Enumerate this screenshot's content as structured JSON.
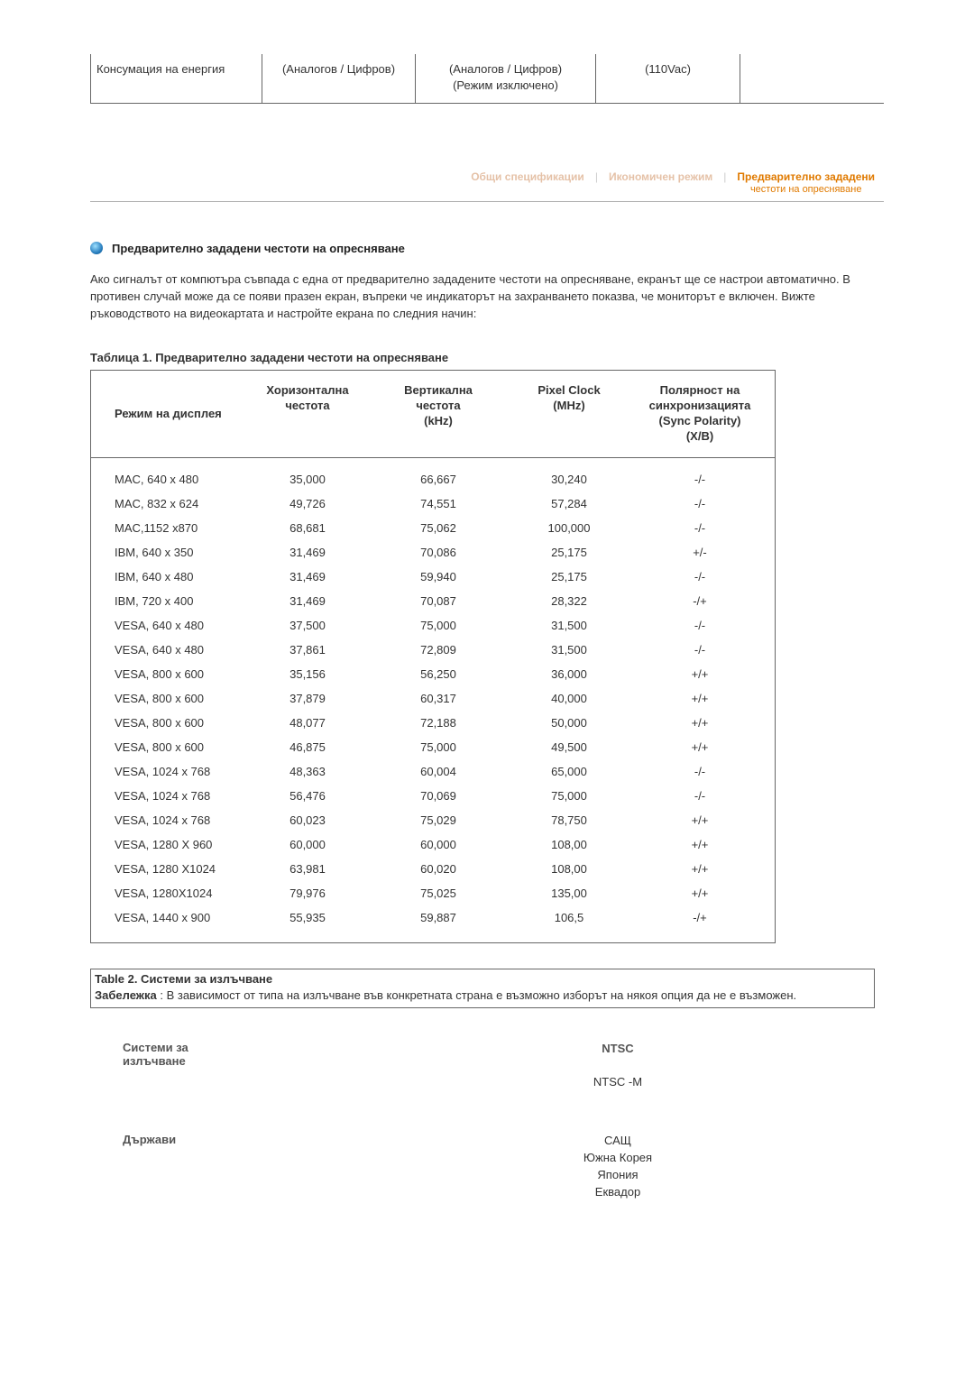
{
  "top_table": {
    "col1": "Консумация на енергия",
    "col2": "(Аналогов / Цифров)",
    "col3_line1": "(Аналогов / Цифров)",
    "col3_line2": "(Режим изключено)",
    "col4": "(110Vac)"
  },
  "tabs": {
    "t1": "Общи спецификации",
    "t2": "Икономичен режим",
    "t3_line1": "Предварително зададени",
    "t3_line2": "честоти на опресняване"
  },
  "section": {
    "title": "Предварително зададени честоти на опресняване",
    "intro": "Ако сигналът от компютъра съвпада с една от предварително зададените честоти на опресняване, екранът ще се настрои автоматично. В противен случай може да се появи празен екран, въпреки че индикаторът на захранването показва, че мониторът е включен. Вижте ръководството на видеокартата и настройте екрана по следния начин:"
  },
  "table1": {
    "caption": "Таблица 1. Предварително зададени честоти на опресняване",
    "headers": {
      "mode": "Режим на дисплея",
      "hfreq": "Хоризонтална честота",
      "vfreq_l1": "Вертикална",
      "vfreq_l2": "честота",
      "vfreq_l3": "(kHz)",
      "pclock_l1": "Pixel Clock",
      "pclock_l2": "(MHz)",
      "pol_l1": "Полярност на",
      "pol_l2": "синхронизацията",
      "pol_l3": "(Sync Polarity)",
      "pol_l4": "(X/B)"
    },
    "rows": [
      {
        "mode": "MAC, 640 x 480",
        "h": "35,000",
        "v": "66,667",
        "p": "30,240",
        "s": "-/-"
      },
      {
        "mode": "MAC, 832 x 624",
        "h": "49,726",
        "v": "74,551",
        "p": "57,284",
        "s": "-/-"
      },
      {
        "mode": "MAC,1152 x870",
        "h": "68,681",
        "v": "75,062",
        "p": "100,000",
        "s": "-/-"
      },
      {
        "mode": "IBM, 640 x 350",
        "h": "31,469",
        "v": "70,086",
        "p": "25,175",
        "s": "+/-"
      },
      {
        "mode": "IBM, 640 x 480",
        "h": "31,469",
        "v": "59,940",
        "p": "25,175",
        "s": "-/-"
      },
      {
        "mode": "IBM, 720 x 400",
        "h": "31,469",
        "v": "70,087",
        "p": "28,322",
        "s": "-/+"
      },
      {
        "mode": "VESA, 640 x 480",
        "h": "37,500",
        "v": "75,000",
        "p": "31,500",
        "s": "-/-"
      },
      {
        "mode": "VESA, 640 x 480",
        "h": "37,861",
        "v": "72,809",
        "p": "31,500",
        "s": "-/-"
      },
      {
        "mode": "VESA, 800 x 600",
        "h": "35,156",
        "v": "56,250",
        "p": "36,000",
        "s": "+/+"
      },
      {
        "mode": "VESA, 800 x 600",
        "h": "37,879",
        "v": "60,317",
        "p": "40,000",
        "s": "+/+"
      },
      {
        "mode": "VESA, 800 x 600",
        "h": "48,077",
        "v": "72,188",
        "p": "50,000",
        "s": "+/+"
      },
      {
        "mode": "VESA, 800 x 600",
        "h": "46,875",
        "v": "75,000",
        "p": "49,500",
        "s": "+/+"
      },
      {
        "mode": "VESA, 1024 x 768",
        "h": "48,363",
        "v": "60,004",
        "p": "65,000",
        "s": "-/-"
      },
      {
        "mode": "VESA, 1024 x 768",
        "h": "56,476",
        "v": "70,069",
        "p": "75,000",
        "s": "-/-"
      },
      {
        "mode": "VESA, 1024 x 768",
        "h": "60,023",
        "v": "75,029",
        "p": "78,750",
        "s": "+/+"
      },
      {
        "mode": "VESA, 1280 X 960",
        "h": "60,000",
        "v": "60,000",
        "p": "108,00",
        "s": "+/+"
      },
      {
        "mode": "VESA, 1280 X1024",
        "h": "63,981",
        "v": "60,020",
        "p": "108,00",
        "s": "+/+"
      },
      {
        "mode": "VESA, 1280X1024",
        "h": "79,976",
        "v": "75,025",
        "p": "135,00",
        "s": "+/+"
      },
      {
        "mode": "VESA, 1440 x 900",
        "h": "55,935",
        "v": "59,887",
        "p": "106,5",
        "s": "-/+"
      }
    ]
  },
  "table2": {
    "title": "Table 2. Системи за излъчване",
    "note_label": "Забележка",
    "note_text": " : В зависимост от типа на излъчване във конкретната страна е възможно изборът на някоя опция да не е възможен."
  },
  "broadcast": {
    "left1_l1": "Системи за",
    "left1_l2": "излъчване",
    "right1_head": "NTSC",
    "right1_sub": "NTSC -M",
    "left2": "Държави",
    "countries": [
      "САЩ",
      "Южна Корея",
      "Япония",
      "Еквадор"
    ]
  },
  "style": {
    "text_color": "#333333",
    "border_color": "#666666",
    "tab_active_color": "#e07a00",
    "tab_inactive_color": "#d09060",
    "bullet_gradient_from": "#9fe0ff",
    "bullet_gradient_to": "#0a4f85",
    "background": "#ffffff",
    "font_family": "Arial"
  }
}
